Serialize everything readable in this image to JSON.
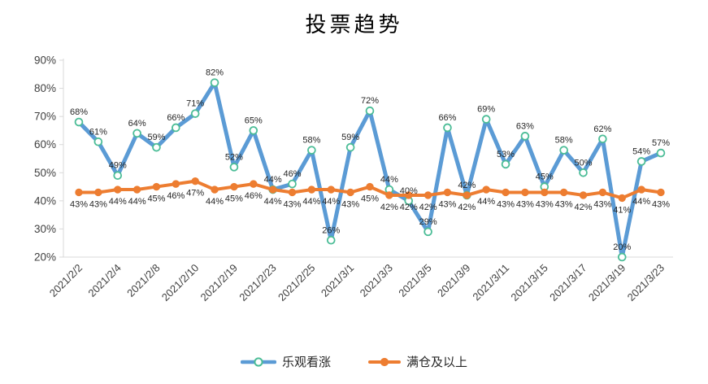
{
  "page": {
    "background": "#ffffff"
  },
  "chart_data": {
    "type": "line",
    "title": "投票趋势",
    "x_tick_labels": [
      "2021/2/2",
      "2021/2/4",
      "2021/2/8",
      "2021/2/10",
      "2021/2/19",
      "2021/2/23",
      "2021/2/25",
      "2021/3/1",
      "2021/3/3",
      "2021/3/5",
      "2021/3/9",
      "2021/3/11",
      "2021/3/15",
      "2021/3/17",
      "2021/3/19",
      "2021/3/23"
    ],
    "x_tick_every": 2,
    "num_points": 31,
    "series": [
      {
        "name": "乐观看涨",
        "color": "#5B9BD5",
        "marker": "open-circle",
        "marker_fill": "#ffffff",
        "marker_stroke": "#4CBD97",
        "line_width": 5,
        "label_position": "above",
        "values_pct": [
          68,
          61,
          49,
          64,
          59,
          66,
          71,
          82,
          52,
          65,
          44,
          46,
          58,
          26,
          59,
          72,
          44,
          40,
          29,
          66,
          42,
          69,
          53,
          63,
          45,
          58,
          50,
          62,
          20,
          54,
          57
        ]
      },
      {
        "name": "满仓及以上",
        "color": "#ED7D31",
        "marker": "filled-circle",
        "marker_fill": "#ED7D31",
        "marker_stroke": "#ED7D31",
        "line_width": 4,
        "label_position": "below",
        "values_pct": [
          43,
          43,
          44,
          44,
          45,
          46,
          47,
          44,
          45,
          46,
          44,
          43,
          44,
          44,
          43,
          45,
          42,
          42,
          42,
          43,
          42,
          44,
          43,
          43,
          43,
          43,
          42,
          43,
          41,
          44,
          43
        ]
      }
    ],
    "y_axis": {
      "min": 20,
      "max": 90,
      "step": 10,
      "tick_labels": [
        "90%",
        "80%",
        "70%",
        "60%",
        "50%",
        "40%",
        "30%",
        "20%"
      ],
      "format": "percent"
    },
    "gridlines": false,
    "legend_position": "bottom",
    "axis_color": "#d9d9d9",
    "axis_text_color": "#404040",
    "data_label_color": "#262626"
  }
}
